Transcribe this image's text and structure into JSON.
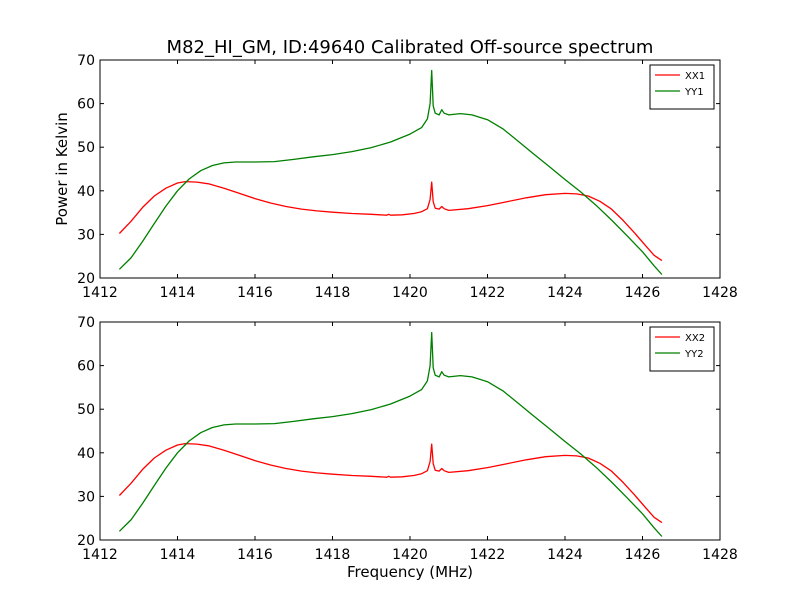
{
  "figure": {
    "title": "M82_HI_GM, ID:49640 Calibrated Off-source spectrum",
    "ylabel": "Power in Kelvin",
    "xlabel": "Frequency (MHz)"
  },
  "colors": {
    "red": "#ff0000",
    "green": "#008000"
  },
  "chart_data": [
    {
      "type": "line",
      "xlim": [
        1412,
        1428
      ],
      "ylim": [
        20,
        70
      ],
      "xticks": [
        1412,
        1414,
        1416,
        1418,
        1420,
        1422,
        1424,
        1426,
        1428
      ],
      "yticks": [
        20,
        30,
        40,
        50,
        60,
        70
      ],
      "legend_position": "top-right",
      "series": [
        {
          "name": "XX1",
          "color": "#ff0000",
          "points": [
            [
              1412.5,
              30.2
            ],
            [
              1412.8,
              33.0
            ],
            [
              1413.1,
              36.2
            ],
            [
              1413.4,
              38.8
            ],
            [
              1413.7,
              40.6
            ],
            [
              1414.0,
              41.8
            ],
            [
              1414.2,
              42.1
            ],
            [
              1414.5,
              42.0
            ],
            [
              1414.8,
              41.6
            ],
            [
              1415.2,
              40.6
            ],
            [
              1415.6,
              39.4
            ],
            [
              1416.0,
              38.2
            ],
            [
              1416.4,
              37.2
            ],
            [
              1416.8,
              36.4
            ],
            [
              1417.2,
              35.8
            ],
            [
              1417.6,
              35.4
            ],
            [
              1418.0,
              35.1
            ],
            [
              1418.5,
              34.8
            ],
            [
              1419.0,
              34.6
            ],
            [
              1419.4,
              34.4
            ],
            [
              1419.45,
              34.6
            ],
            [
              1419.5,
              34.4
            ],
            [
              1419.8,
              34.5
            ],
            [
              1420.1,
              34.8
            ],
            [
              1420.3,
              35.2
            ],
            [
              1420.45,
              35.9
            ],
            [
              1420.52,
              38.0
            ],
            [
              1420.56,
              42.0
            ],
            [
              1420.6,
              37.5
            ],
            [
              1420.65,
              36.0
            ],
            [
              1420.75,
              35.8
            ],
            [
              1420.82,
              36.4
            ],
            [
              1420.88,
              35.9
            ],
            [
              1421.0,
              35.5
            ],
            [
              1421.5,
              35.9
            ],
            [
              1422.0,
              36.6
            ],
            [
              1422.5,
              37.5
            ],
            [
              1423.0,
              38.4
            ],
            [
              1423.5,
              39.1
            ],
            [
              1424.0,
              39.4
            ],
            [
              1424.3,
              39.3
            ],
            [
              1424.6,
              38.8
            ],
            [
              1424.9,
              37.6
            ],
            [
              1425.2,
              35.8
            ],
            [
              1425.5,
              33.2
            ],
            [
              1425.8,
              30.3
            ],
            [
              1426.1,
              27.2
            ],
            [
              1426.3,
              25.2
            ],
            [
              1426.5,
              24.0
            ]
          ]
        },
        {
          "name": "YY1",
          "color": "#008000",
          "points": [
            [
              1412.5,
              22.0
            ],
            [
              1412.8,
              24.6
            ],
            [
              1413.1,
              28.4
            ],
            [
              1413.4,
              32.5
            ],
            [
              1413.7,
              36.5
            ],
            [
              1414.0,
              40.0
            ],
            [
              1414.3,
              42.7
            ],
            [
              1414.6,
              44.6
            ],
            [
              1414.9,
              45.8
            ],
            [
              1415.2,
              46.4
            ],
            [
              1415.5,
              46.6
            ],
            [
              1416.0,
              46.6
            ],
            [
              1416.5,
              46.7
            ],
            [
              1417.0,
              47.2
            ],
            [
              1417.5,
              47.8
            ],
            [
              1418.0,
              48.3
            ],
            [
              1418.5,
              49.0
            ],
            [
              1419.0,
              49.9
            ],
            [
              1419.5,
              51.2
            ],
            [
              1420.0,
              53.0
            ],
            [
              1420.3,
              54.5
            ],
            [
              1420.45,
              56.5
            ],
            [
              1420.52,
              60.0
            ],
            [
              1420.56,
              67.6
            ],
            [
              1420.6,
              59.5
            ],
            [
              1420.65,
              57.8
            ],
            [
              1420.75,
              57.4
            ],
            [
              1420.82,
              58.6
            ],
            [
              1420.88,
              57.8
            ],
            [
              1421.0,
              57.4
            ],
            [
              1421.3,
              57.7
            ],
            [
              1421.6,
              57.4
            ],
            [
              1422.0,
              56.3
            ],
            [
              1422.4,
              54.2
            ],
            [
              1422.8,
              51.3
            ],
            [
              1423.2,
              48.4
            ],
            [
              1423.6,
              45.5
            ],
            [
              1424.0,
              42.6
            ],
            [
              1424.4,
              39.8
            ],
            [
              1424.8,
              36.7
            ],
            [
              1425.2,
              33.3
            ],
            [
              1425.6,
              29.7
            ],
            [
              1426.0,
              26.0
            ],
            [
              1426.3,
              22.8
            ],
            [
              1426.5,
              20.8
            ]
          ]
        }
      ]
    },
    {
      "type": "line",
      "xlim": [
        1412,
        1428
      ],
      "ylim": [
        20,
        70
      ],
      "xticks": [
        1412,
        1414,
        1416,
        1418,
        1420,
        1422,
        1424,
        1426,
        1428
      ],
      "yticks": [
        20,
        30,
        40,
        50,
        60,
        70
      ],
      "legend_position": "top-right",
      "series": [
        {
          "name": "XX2",
          "color": "#ff0000",
          "points": [
            [
              1412.5,
              30.2
            ],
            [
              1412.8,
              33.0
            ],
            [
              1413.1,
              36.2
            ],
            [
              1413.4,
              38.8
            ],
            [
              1413.7,
              40.6
            ],
            [
              1414.0,
              41.8
            ],
            [
              1414.2,
              42.1
            ],
            [
              1414.5,
              42.0
            ],
            [
              1414.8,
              41.6
            ],
            [
              1415.2,
              40.6
            ],
            [
              1415.6,
              39.4
            ],
            [
              1416.0,
              38.2
            ],
            [
              1416.4,
              37.2
            ],
            [
              1416.8,
              36.4
            ],
            [
              1417.2,
              35.8
            ],
            [
              1417.6,
              35.4
            ],
            [
              1418.0,
              35.1
            ],
            [
              1418.5,
              34.8
            ],
            [
              1419.0,
              34.6
            ],
            [
              1419.4,
              34.4
            ],
            [
              1419.45,
              34.6
            ],
            [
              1419.5,
              34.4
            ],
            [
              1419.8,
              34.5
            ],
            [
              1420.1,
              34.8
            ],
            [
              1420.3,
              35.2
            ],
            [
              1420.45,
              35.9
            ],
            [
              1420.52,
              38.0
            ],
            [
              1420.56,
              42.0
            ],
            [
              1420.6,
              37.5
            ],
            [
              1420.65,
              36.0
            ],
            [
              1420.75,
              35.8
            ],
            [
              1420.82,
              36.4
            ],
            [
              1420.88,
              35.9
            ],
            [
              1421.0,
              35.5
            ],
            [
              1421.5,
              35.9
            ],
            [
              1422.0,
              36.6
            ],
            [
              1422.5,
              37.5
            ],
            [
              1423.0,
              38.4
            ],
            [
              1423.5,
              39.1
            ],
            [
              1424.0,
              39.4
            ],
            [
              1424.3,
              39.3
            ],
            [
              1424.6,
              38.8
            ],
            [
              1424.9,
              37.6
            ],
            [
              1425.2,
              35.8
            ],
            [
              1425.5,
              33.2
            ],
            [
              1425.8,
              30.3
            ],
            [
              1426.1,
              27.2
            ],
            [
              1426.3,
              25.2
            ],
            [
              1426.5,
              24.0
            ]
          ]
        },
        {
          "name": "YY2",
          "color": "#008000",
          "points": [
            [
              1412.5,
              22.0
            ],
            [
              1412.8,
              24.6
            ],
            [
              1413.1,
              28.4
            ],
            [
              1413.4,
              32.5
            ],
            [
              1413.7,
              36.5
            ],
            [
              1414.0,
              40.0
            ],
            [
              1414.3,
              42.7
            ],
            [
              1414.6,
              44.6
            ],
            [
              1414.9,
              45.8
            ],
            [
              1415.2,
              46.4
            ],
            [
              1415.5,
              46.6
            ],
            [
              1416.0,
              46.6
            ],
            [
              1416.5,
              46.7
            ],
            [
              1417.0,
              47.2
            ],
            [
              1417.5,
              47.8
            ],
            [
              1418.0,
              48.3
            ],
            [
              1418.5,
              49.0
            ],
            [
              1419.0,
              49.9
            ],
            [
              1419.5,
              51.2
            ],
            [
              1420.0,
              53.0
            ],
            [
              1420.3,
              54.5
            ],
            [
              1420.45,
              56.5
            ],
            [
              1420.52,
              60.0
            ],
            [
              1420.56,
              67.6
            ],
            [
              1420.6,
              59.5
            ],
            [
              1420.65,
              57.8
            ],
            [
              1420.75,
              57.4
            ],
            [
              1420.82,
              58.6
            ],
            [
              1420.88,
              57.8
            ],
            [
              1421.0,
              57.4
            ],
            [
              1421.3,
              57.7
            ],
            [
              1421.6,
              57.4
            ],
            [
              1422.0,
              56.3
            ],
            [
              1422.4,
              54.2
            ],
            [
              1422.8,
              51.3
            ],
            [
              1423.2,
              48.4
            ],
            [
              1423.6,
              45.5
            ],
            [
              1424.0,
              42.6
            ],
            [
              1424.4,
              39.8
            ],
            [
              1424.8,
              36.7
            ],
            [
              1425.2,
              33.3
            ],
            [
              1425.6,
              29.7
            ],
            [
              1426.0,
              26.0
            ],
            [
              1426.3,
              22.8
            ],
            [
              1426.5,
              20.8
            ]
          ]
        }
      ]
    }
  ]
}
